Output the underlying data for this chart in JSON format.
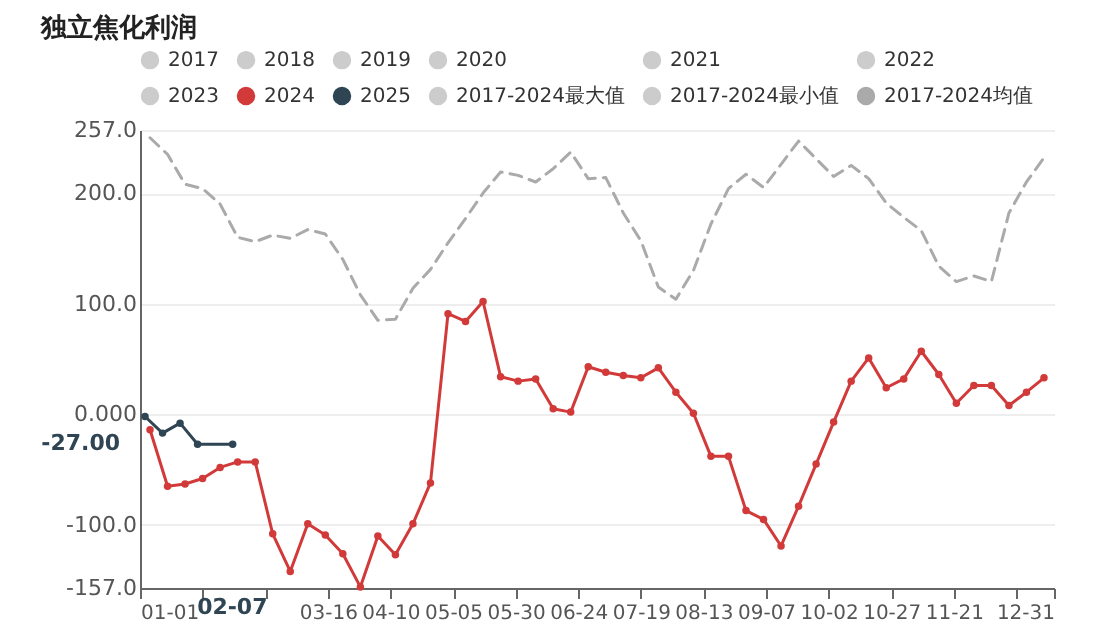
{
  "chart_data": {
    "type": "line",
    "title": "独立焦化利润",
    "x": [
      "--01-05",
      "--01-12",
      "--01-19",
      "--01-26",
      "--02-02",
      "--02-09",
      "--02-16",
      "--02-23",
      "--03-01",
      "--03-08",
      "--03-15",
      "--03-22",
      "--03-29",
      "--04-05",
      "--04-12",
      "--04-19",
      "--04-26",
      "--05-03",
      "--05-10",
      "--05-17",
      "--05-24",
      "--05-31",
      "--06-07",
      "--06-14",
      "--06-21",
      "--06-28",
      "--07-05",
      "--07-12",
      "--07-19",
      "--07-26",
      "--08-02",
      "--08-09",
      "--08-16",
      "--08-23",
      "--08-30",
      "--09-06",
      "--09-13",
      "--09-20",
      "--09-27",
      "--10-04",
      "--10-11",
      "--10-18",
      "--10-25",
      "--11-01",
      "--11-08",
      "--11-15",
      "--11-22",
      "--11-29",
      "--12-06",
      "--12-13",
      "--12-20",
      "--12-27"
    ],
    "series": [
      {
        "name": "2017",
        "color": "#cccccc",
        "values": [
          null,
          null,
          null,
          null,
          null,
          null,
          null,
          null,
          null,
          null,
          null,
          null,
          null,
          null,
          null,
          null,
          null,
          null,
          null,
          null,
          null,
          null,
          null,
          null,
          null,
          null,
          null,
          null,
          null,
          null,
          null,
          null,
          null,
          null,
          null,
          null,
          null,
          null,
          null,
          null,
          null,
          null,
          null,
          null,
          null,
          null,
          null,
          null,
          null,
          null,
          null,
          null
        ]
      },
      {
        "name": "2018",
        "color": "#cccccc",
        "values": [
          null,
          null,
          null,
          null,
          null,
          null,
          null,
          null,
          null,
          null,
          null,
          null,
          null,
          null,
          null,
          null,
          null,
          null,
          null,
          null,
          null,
          null,
          null,
          null,
          null,
          null,
          null,
          null,
          null,
          null,
          null,
          null,
          null,
          null,
          null,
          null,
          null,
          null,
          null,
          null,
          null,
          null,
          null,
          null,
          null,
          null,
          null,
          null,
          null,
          null,
          null,
          null
        ]
      },
      {
        "name": "2019",
        "color": "#cccccc",
        "values": [
          null,
          null,
          null,
          null,
          null,
          null,
          null,
          null,
          null,
          null,
          null,
          null,
          null,
          null,
          null,
          null,
          null,
          null,
          null,
          null,
          null,
          null,
          null,
          null,
          null,
          null,
          null,
          null,
          null,
          null,
          null,
          null,
          null,
          null,
          null,
          null,
          null,
          null,
          null,
          null,
          null,
          null,
          null,
          null,
          null,
          null,
          null,
          null,
          null,
          null,
          null,
          null
        ]
      },
      {
        "name": "2020",
        "color": "#cccccc",
        "values": [
          null,
          null,
          null,
          null,
          null,
          null,
          null,
          null,
          null,
          null,
          null,
          null,
          null,
          null,
          null,
          null,
          null,
          null,
          null,
          null,
          null,
          null,
          null,
          null,
          null,
          null,
          null,
          null,
          null,
          null,
          null,
          null,
          null,
          null,
          null,
          null,
          null,
          null,
          null,
          null,
          null,
          null,
          null,
          null,
          null,
          null,
          null,
          null,
          null,
          null,
          null,
          null
        ]
      },
      {
        "name": "2021",
        "color": "#cccccc",
        "values": [
          null,
          null,
          null,
          null,
          null,
          null,
          null,
          null,
          null,
          null,
          null,
          null,
          null,
          null,
          null,
          null,
          null,
          null,
          null,
          null,
          null,
          null,
          null,
          null,
          null,
          null,
          null,
          null,
          null,
          null,
          null,
          null,
          null,
          null,
          null,
          null,
          null,
          null,
          null,
          null,
          null,
          null,
          null,
          null,
          null,
          null,
          null,
          null,
          null,
          null,
          null,
          null
        ]
      },
      {
        "name": "2022",
        "color": "#cccccc",
        "values": [
          null,
          null,
          null,
          null,
          null,
          null,
          null,
          null,
          null,
          null,
          null,
          null,
          null,
          null,
          null,
          null,
          null,
          null,
          null,
          null,
          null,
          null,
          null,
          null,
          null,
          null,
          null,
          null,
          null,
          null,
          null,
          null,
          null,
          null,
          null,
          null,
          null,
          null,
          null,
          null,
          null,
          null,
          null,
          null,
          null,
          null,
          null,
          null,
          null,
          null,
          null,
          null
        ]
      },
      {
        "name": "2023",
        "color": "#cccccc",
        "values": [
          null,
          null,
          null,
          null,
          null,
          null,
          null,
          null,
          null,
          null,
          null,
          null,
          null,
          null,
          null,
          null,
          null,
          null,
          null,
          null,
          null,
          null,
          null,
          null,
          null,
          null,
          null,
          null,
          null,
          null,
          null,
          null,
          null,
          null,
          null,
          null,
          null,
          null,
          null,
          null,
          null,
          null,
          null,
          null,
          null,
          null,
          null,
          null,
          null,
          null,
          null,
          null
        ]
      },
      {
        "name": "2024",
        "color": "#d23a3a",
        "marker": "circle",
        "values": [
          -14,
          -65,
          -63,
          -58,
          -48,
          -43,
          -43,
          -108,
          -142,
          -99,
          -109,
          -126,
          -156,
          -110,
          -127,
          -99,
          -62,
          91,
          84,
          102,
          34,
          30,
          32,
          5,
          2,
          43,
          38,
          35,
          33,
          42,
          20,
          1,
          -38,
          -38,
          -87,
          -95,
          -119,
          -83,
          -45,
          -7,
          30,
          51,
          24,
          32,
          57,
          36,
          10,
          26,
          26,
          8,
          20,
          33
        ]
      },
      {
        "name": "2025",
        "color": "#2f4554",
        "marker": "circle",
        "x": [
          "--01-03",
          "--01-10",
          "--01-17",
          "--01-24",
          "--02-07"
        ],
        "values": [
          -2,
          -17,
          -8,
          -27,
          -27
        ]
      },
      {
        "name": "2017-2024最大值",
        "color": "#cccccc",
        "values": [
          null,
          null,
          null,
          null,
          null,
          null,
          null,
          null,
          null,
          null,
          null,
          null,
          null,
          null,
          null,
          null,
          null,
          null,
          null,
          null,
          null,
          null,
          null,
          null,
          null,
          null,
          null,
          null,
          null,
          null,
          null,
          null,
          null,
          null,
          null,
          null,
          null,
          null,
          null,
          null,
          null,
          null,
          null,
          null,
          null,
          null,
          null,
          null,
          null,
          null,
          null,
          null
        ]
      },
      {
        "name": "2017-2024最小值",
        "color": "#cccccc",
        "values": [
          null,
          null,
          null,
          null,
          null,
          null,
          null,
          null,
          null,
          null,
          null,
          null,
          null,
          null,
          null,
          null,
          null,
          null,
          null,
          null,
          null,
          null,
          null,
          null,
          null,
          null,
          null,
          null,
          null,
          null,
          null,
          null,
          null,
          null,
          null,
          null,
          null,
          null,
          null,
          null,
          null,
          null,
          null,
          null,
          null,
          null,
          null,
          null,
          null,
          null,
          null,
          null
        ]
      },
      {
        "name": "2017-2024均值",
        "color": "#aaaaaa",
        "marker": "none",
        "line_style": "dashed",
        "values": [
          250,
          235,
          208,
          204,
          190,
          160,
          156,
          162,
          159,
          167,
          163,
          140,
          108,
          85,
          86,
          114,
          131,
          155,
          177,
          200,
          219,
          216,
          210,
          222,
          237,
          213,
          214,
          182,
          157,
          115,
          104,
          130,
          172,
          204,
          217,
          205,
          226,
          247,
          231,
          215,
          225,
          213,
          191,
          178,
          166,
          134,
          120,
          125,
          120,
          182,
          210,
          232
        ]
      }
    ],
    "xlim": [
      "--01-01",
      "--12-31"
    ],
    "xticks": [
      {
        "value": "--01-01",
        "label": "01-01"
      },
      {
        "value": "--01-26",
        "label": null
      },
      {
        "value": "--02-20",
        "label": null
      },
      {
        "value": "--03-16",
        "label": "03-16"
      },
      {
        "value": "--04-10",
        "label": "04-10"
      },
      {
        "value": "--05-05",
        "label": "05-05"
      },
      {
        "value": "--05-30",
        "label": "05-30"
      },
      {
        "value": "--06-24",
        "label": "06-24"
      },
      {
        "value": "--07-19",
        "label": "07-19"
      },
      {
        "value": "--08-13",
        "label": "08-13"
      },
      {
        "value": "--09-07",
        "label": "09-07"
      },
      {
        "value": "--10-02",
        "label": "10-02"
      },
      {
        "value": "--10-27",
        "label": "10-27"
      },
      {
        "value": "--11-21",
        "label": "11-21"
      },
      {
        "value": "--12-16",
        "label": null
      },
      {
        "value": "--12-31",
        "label": "12-31"
      }
    ],
    "ylim": [
      -157,
      257
    ],
    "yticks": [
      {
        "value": -157,
        "label": "-157.0"
      },
      {
        "value": -100,
        "label": "-100.0"
      },
      {
        "value": 0,
        "label": "0.000"
      },
      {
        "value": 100,
        "label": "100.0"
      },
      {
        "value": 200,
        "label": "200.0"
      },
      {
        "value": 257,
        "label": "257.0"
      }
    ],
    "grid": "y",
    "legend": "top",
    "annotations": [
      "-27.00",
      "02-07"
    ]
  }
}
